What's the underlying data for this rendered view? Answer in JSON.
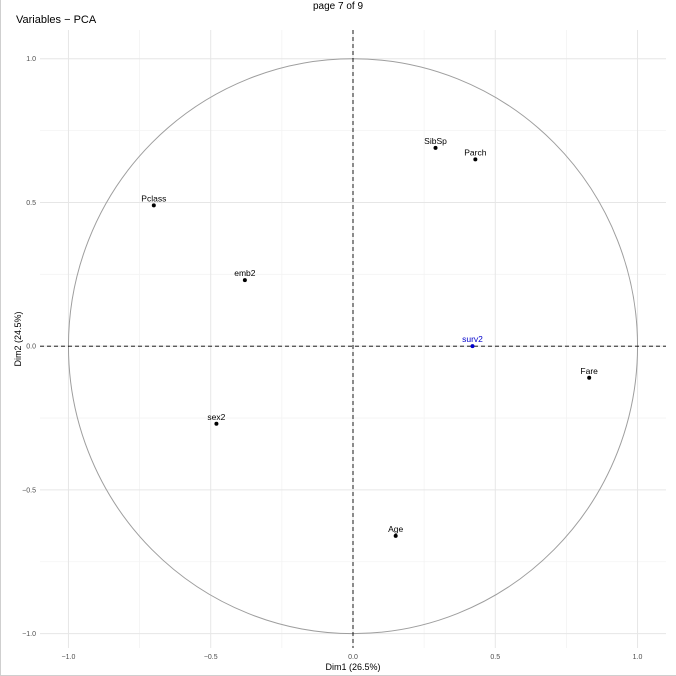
{
  "page": {
    "label": "page 7 of 9"
  },
  "chart_data": {
    "type": "scatter",
    "title": "Variables − PCA",
    "xlabel": "Dim1 (26.5%)",
    "ylabel": "Dim2 (24.5%)",
    "xlim": [
      -1.1,
      1.1
    ],
    "ylim": [
      -1.05,
      1.1
    ],
    "x_ticks": [
      -1.0,
      -0.5,
      0.0,
      0.5,
      1.0
    ],
    "y_ticks": [
      -1.0,
      -0.5,
      0.0,
      0.5,
      1.0
    ],
    "x_tick_labels": [
      "−1.0",
      "−0.5",
      "0.0",
      "0.5",
      "1.0"
    ],
    "y_tick_labels": [
      "−1.0",
      "−0.5",
      "0.0",
      "0.5",
      "1.0"
    ],
    "grid": true,
    "correlation_circle": true,
    "points": [
      {
        "label": "SibSp",
        "x": 0.29,
        "y": 0.69,
        "color": "#000000"
      },
      {
        "label": "Parch",
        "x": 0.43,
        "y": 0.65,
        "color": "#000000"
      },
      {
        "label": "Pclass",
        "x": -0.7,
        "y": 0.49,
        "color": "#000000"
      },
      {
        "label": "emb2",
        "x": -0.38,
        "y": 0.23,
        "color": "#000000"
      },
      {
        "label": "surv2",
        "x": 0.42,
        "y": 0.0,
        "color": "#0000cc"
      },
      {
        "label": "Fare",
        "x": 0.83,
        "y": -0.11,
        "color": "#000000"
      },
      {
        "label": "sex2",
        "x": -0.48,
        "y": -0.27,
        "color": "#000000"
      },
      {
        "label": "Age",
        "x": 0.15,
        "y": -0.66,
        "color": "#000000"
      }
    ]
  }
}
